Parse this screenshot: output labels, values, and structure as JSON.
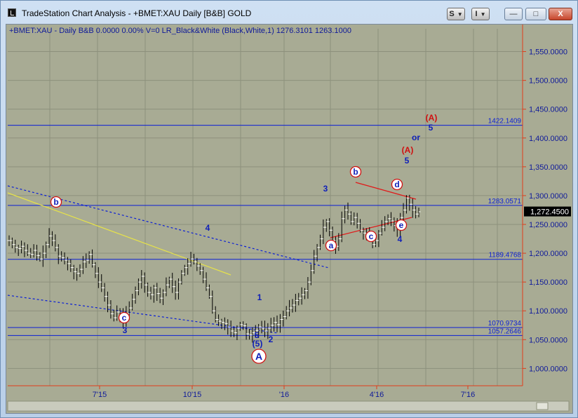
{
  "window": {
    "title": "TradeStation Chart Analysis - +BMET:XAU Daily [B&B] GOLD",
    "style_button": "S",
    "interval_button": "I",
    "minimize": "—",
    "restore": "□",
    "close": "X"
  },
  "chart_header": {
    "text": "+BMET:XAU - Daily  B&B  0.0000  0.00%  V=0  LR_Black&White (Black,White,1)  1276.3101  1263.1000"
  },
  "colors": {
    "background": "#a8ab94",
    "grid": "#8d907c",
    "bar": "#000000",
    "level_line": "#0b1fd6",
    "axis_line": "#e03c1a",
    "axis_text": "#0f1a9a",
    "wave_blue": "#1020b8",
    "wave_red": "#d01010",
    "trend_yellow": "#e6e24a",
    "trend_red": "#e01a1a"
  },
  "chart_data": {
    "type": "candlestick",
    "price_axis": {
      "ylim": [
        970,
        1575
      ],
      "ticks": [
        1000,
        1050,
        1100,
        1150,
        1200,
        1250,
        1300,
        1350,
        1400,
        1450,
        1500,
        1550
      ],
      "tick_labels": [
        "1,000.0000",
        "1,050.0000",
        "1,100.0000",
        "1,150.0000",
        "1,200.0000",
        "1,250.0000",
        "1,300.0000",
        "1,350.0000",
        "1,400.0000",
        "1,450.0000",
        "1,500.0000",
        "1,550.0000"
      ],
      "last_price": 1272.45,
      "last_price_label": "1,272.4500"
    },
    "time_axis": {
      "labels": [
        "7'15",
        "10'15",
        "'16",
        "4'16",
        "7'16"
      ]
    },
    "levels": [
      {
        "value": 1422.1409,
        "label": "1422.1409"
      },
      {
        "value": 1283.0571,
        "label": "1283.0571"
      },
      {
        "value": 1189.4768,
        "label": "1189.4768"
      },
      {
        "value": 1070.9734,
        "label": "1070.9734"
      },
      {
        "value": 1057.2646,
        "label": "1057.2646"
      }
    ],
    "price_path": [
      [
        1222,
        1215,
        1210,
        1208,
        1212,
        1205,
        1200,
        1198,
        1205,
        1196,
        1190,
        1200,
        1215,
        1230,
        1222,
        1210,
        1195,
        1192,
        1188,
        1182,
        1175,
        1168,
        1165,
        1172,
        1185,
        1188,
        1198,
        1180,
        1165,
        1150,
        1140,
        1125,
        1110,
        1095,
        1088,
        1098,
        1092,
        1085,
        1095,
        1105,
        1120,
        1135,
        1150,
        1160,
        1145,
        1132,
        1128,
        1140,
        1130,
        1122,
        1132,
        1145,
        1155,
        1142,
        1132,
        1150,
        1165,
        1175,
        1182,
        1190,
        1185,
        1178,
        1170,
        1155,
        1140,
        1125,
        1100,
        1085,
        1082,
        1080,
        1078,
        1072,
        1065,
        1062,
        1070,
        1076,
        1074,
        1060,
        1058,
        1062,
        1066,
        1072,
        1070,
        1065,
        1070,
        1075,
        1080,
        1076,
        1085,
        1090,
        1100,
        1105,
        1110,
        1118,
        1122,
        1128,
        1135,
        1150,
        1170,
        1195,
        1210,
        1225,
        1245,
        1255,
        1240,
        1222,
        1212,
        1225,
        1260,
        1275,
        1268,
        1255,
        1262,
        1252,
        1240,
        1235,
        1232,
        1225,
        1215,
        1222,
        1235,
        1245,
        1255,
        1260,
        1256,
        1248,
        1242,
        1262,
        1275,
        1296,
        1285,
        1275,
        1268,
        1272
      ]
    ],
    "wave_labels": [
      {
        "text": "b",
        "circled": true,
        "color": "red"
      },
      {
        "text": "c",
        "circled": true,
        "color": "red"
      },
      {
        "text": "3",
        "circled": false,
        "color": "blue"
      },
      {
        "text": "4",
        "circled": false,
        "color": "blue"
      },
      {
        "text": "1",
        "circled": false,
        "color": "blue"
      },
      {
        "text": "5",
        "circled": false,
        "color": "blue"
      },
      {
        "text": "(5)",
        "circled": false,
        "color": "blue"
      },
      {
        "text": "2",
        "circled": false,
        "color": "blue"
      },
      {
        "text": "A",
        "circled": true,
        "color": "red"
      },
      {
        "text": "a",
        "circled": true,
        "color": "red"
      },
      {
        "text": "3",
        "circled": false,
        "color": "blue"
      },
      {
        "text": "b",
        "circled": true,
        "color": "red"
      },
      {
        "text": "c",
        "circled": true,
        "color": "red"
      },
      {
        "text": "d",
        "circled": true,
        "color": "red"
      },
      {
        "text": "e",
        "circled": true,
        "color": "red"
      },
      {
        "text": "4",
        "circled": false,
        "color": "blue"
      },
      {
        "text": "5",
        "circled": false,
        "color": "blue"
      },
      {
        "text": "(A)",
        "circled": false,
        "color": "red"
      },
      {
        "text": "or",
        "circled": false,
        "color": "blue"
      },
      {
        "text": "5",
        "circled": false,
        "color": "blue"
      },
      {
        "text": "(A)",
        "circled": false,
        "color": "red"
      }
    ]
  }
}
